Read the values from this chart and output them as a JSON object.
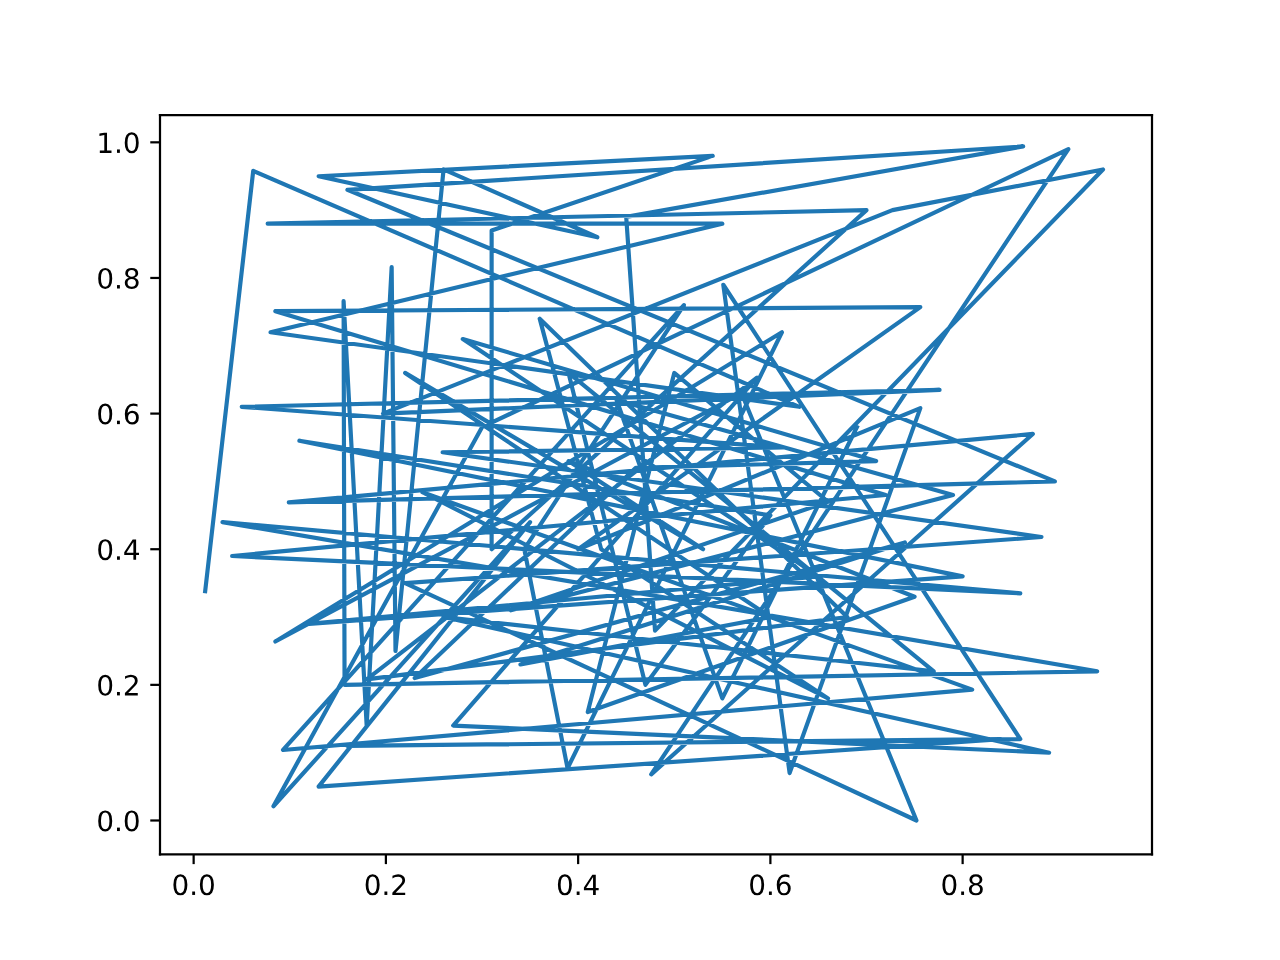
{
  "chart_data": {
    "type": "line",
    "xlim": [
      -0.035,
      0.997
    ],
    "ylim": [
      -0.05,
      1.04
    ],
    "xticks": [
      {
        "value": 0,
        "label": "0.0"
      },
      {
        "value": 0.2,
        "label": "0.2"
      },
      {
        "value": 0.4,
        "label": "0.4"
      },
      {
        "value": 0.6,
        "label": "0.6"
      },
      {
        "value": 0.8,
        "label": "0.8"
      }
    ],
    "yticks": [
      {
        "value": 0,
        "label": "0.0"
      },
      {
        "value": 0.2,
        "label": "0.2"
      },
      {
        "value": 0.4,
        "label": "0.4"
      },
      {
        "value": 0.6,
        "label": "0.6"
      },
      {
        "value": 0.8,
        "label": "0.8"
      },
      {
        "value": 1,
        "label": "1.0"
      }
    ],
    "grid": false,
    "marker": "none",
    "line_style": "solid",
    "series": [
      {
        "color": "#1f77b4",
        "x": [
          0.012,
          0.062,
          0.63,
          0.08,
          0.55,
          0.077,
          0.7,
          0.31,
          0.31,
          0.54,
          0.13,
          0.42,
          0.26,
          0.21,
          0.206,
          0.18,
          0.156,
          0.157,
          0.94,
          0.03,
          0.86,
          0.04,
          0.72,
          0.085,
          0.756,
          0.4,
          0.756,
          0.62,
          0.551,
          0.86,
          0.16,
          0.84,
          0.13,
          0.35,
          0.083,
          0.3,
          0.91,
          0.476,
          0.873,
          0.099,
          0.896,
          0.16,
          0.863,
          0.45,
          0.48,
          0.946,
          0.727,
          0.197,
          0.776,
          0.05,
          0.613,
          0.259,
          0.882,
          0.22,
          0.752,
          0.57,
          0.085,
          0.612,
          0.389,
          0.344,
          0.51,
          0.093,
          0.81,
          0.238,
          0.66,
          0.424,
          0.36,
          0.68,
          0.18,
          0.586,
          0.27,
          0.89,
          0.26,
          0.77,
          0.39,
          0.47,
          0.6,
          0.11,
          0.8,
          0.12,
          0.65,
          0.28,
          0.71,
          0.46,
          0.23,
          0.74,
          0.34,
          0.6,
          0.22,
          0.53,
          0.39,
          0.75,
          0.41,
          0.5,
          0.66,
          0.33,
          0.79,
          0.44,
          0.55,
          0.69
        ],
        "values": [
          0.338,
          0.958,
          0.61,
          0.72,
          0.88,
          0.88,
          0.9,
          0.4,
          0.87,
          0.98,
          0.95,
          0.86,
          0.96,
          0.25,
          0.816,
          0.14,
          0.766,
          0.2,
          0.22,
          0.44,
          0.335,
          0.39,
          0.48,
          0.751,
          0.757,
          0.4,
          0.608,
          0.07,
          0.79,
          0.12,
          0.11,
          0.12,
          0.05,
          0.44,
          0.021,
          0.58,
          0.99,
          0.068,
          0.57,
          0.469,
          0.5,
          0.93,
          0.994,
          0.89,
          0.28,
          0.96,
          0.9,
          0.6,
          0.635,
          0.61,
          0.55,
          0.543,
          0.418,
          0.35,
          0.0,
          0.63,
          0.264,
          0.72,
          0.077,
          0.4,
          0.76,
          0.104,
          0.193,
          0.484,
          0.18,
          0.4,
          0.74,
          0.3,
          0.208,
          0.653,
          0.14,
          0.1,
          0.3,
          0.22,
          0.66,
          0.2,
          0.45,
          0.56,
          0.36,
          0.29,
          0.36,
          0.71,
          0.53,
          0.52,
          0.21,
          0.41,
          0.23,
          0.3,
          0.66,
          0.4,
          0.53,
          0.33,
          0.16,
          0.66,
          0.47,
          0.31,
          0.48,
          0.62,
          0.18,
          0.58
        ]
      }
    ]
  }
}
